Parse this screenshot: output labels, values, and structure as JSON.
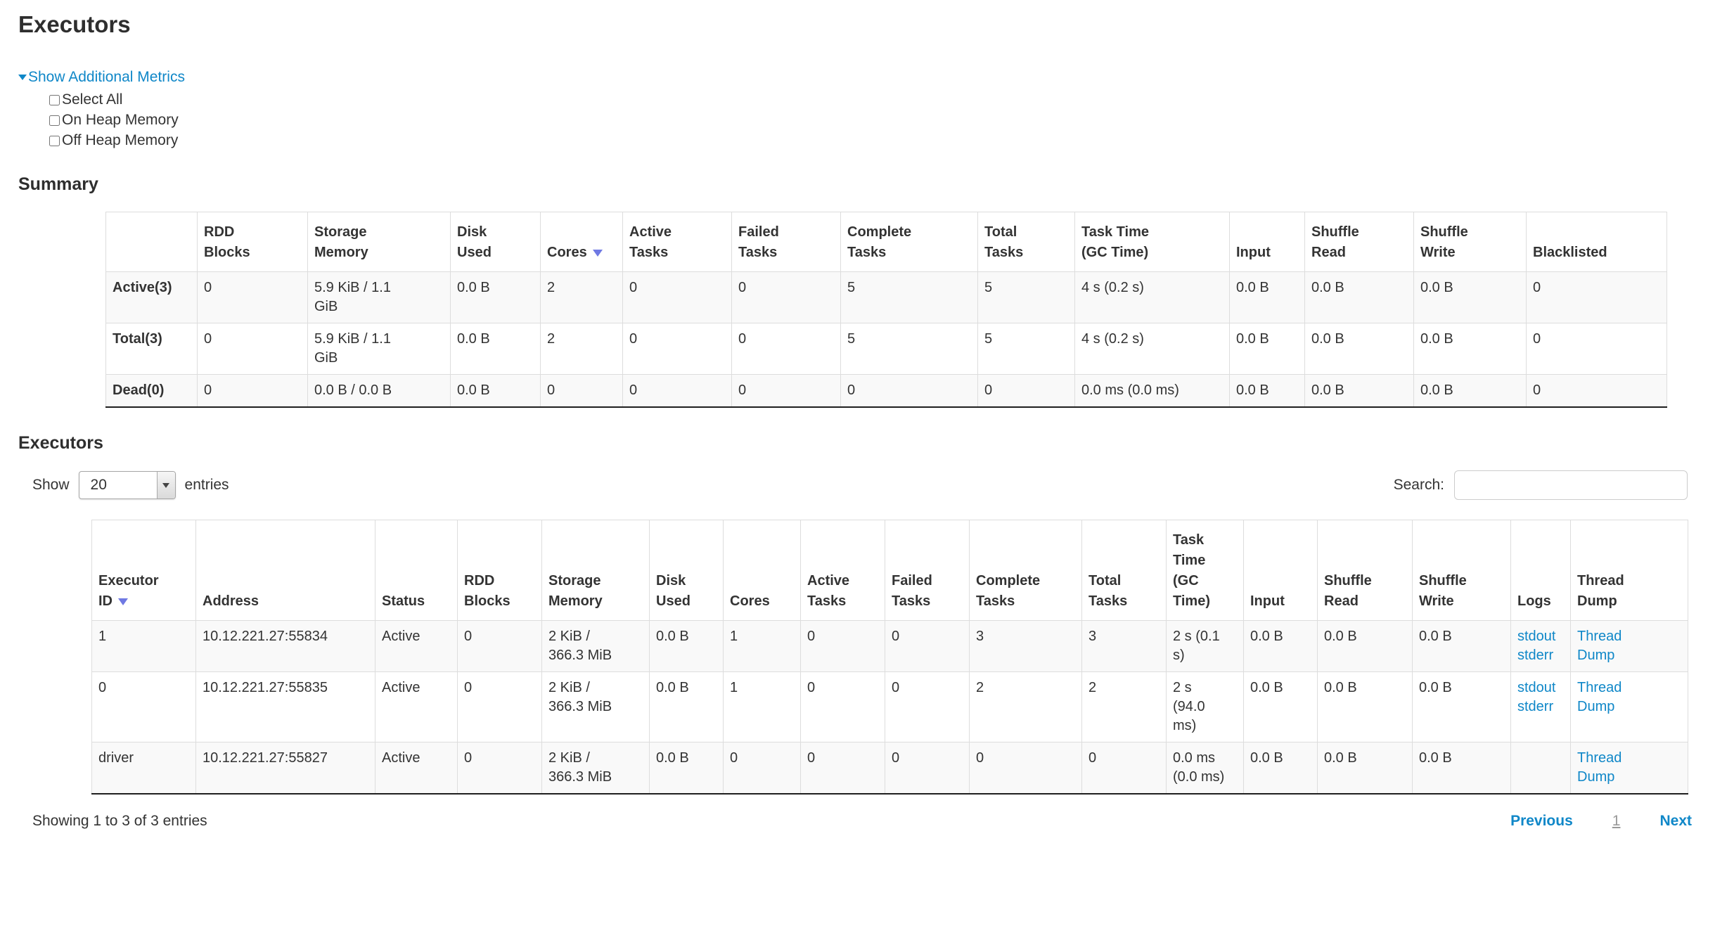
{
  "page": {
    "title": "Executors"
  },
  "colors": {
    "text": "#333333",
    "link_blue": "#0f87c8",
    "sort_arrow": "#6f79e3",
    "row_stripe": "#f9f9f9",
    "border": "#dddddd",
    "page_number_gray": "#999999"
  },
  "metrics_toggle": {
    "label": "Show Additional Metrics",
    "checkboxes": [
      "Select All",
      "On Heap Memory",
      "Off Heap Memory"
    ]
  },
  "summary": {
    "heading": "Summary",
    "columns": [
      "",
      "RDD\nBlocks",
      "Storage\nMemory",
      "Disk\nUsed",
      "Cores",
      "Active\nTasks",
      "Failed\nTasks",
      "Complete\nTasks",
      "Total\nTasks",
      "Task Time\n(GC Time)",
      "Input",
      "Shuffle\nRead",
      "Shuffle\nWrite",
      "Blacklisted"
    ],
    "sort_column_index": 4,
    "rows": [
      {
        "label": "Active(3)",
        "values": [
          "0",
          "5.9 KiB / 1.1\nGiB",
          "0.0 B",
          "2",
          "0",
          "0",
          "5",
          "5",
          "4 s (0.2 s)",
          "0.0 B",
          "0.0 B",
          "0.0 B",
          "0"
        ]
      },
      {
        "label": "Total(3)",
        "values": [
          "0",
          "5.9 KiB / 1.1\nGiB",
          "0.0 B",
          "2",
          "0",
          "0",
          "5",
          "5",
          "4 s (0.2 s)",
          "0.0 B",
          "0.0 B",
          "0.0 B",
          "0"
        ]
      },
      {
        "label": "Dead(0)",
        "values": [
          "0",
          "0.0 B / 0.0 B",
          "0.0 B",
          "0",
          "0",
          "0",
          "0",
          "0",
          "0.0 ms (0.0 ms)",
          "0.0 B",
          "0.0 B",
          "0.0 B",
          "0"
        ]
      }
    ]
  },
  "executors": {
    "heading": "Executors",
    "controls": {
      "show_label": "Show",
      "page_size": "20",
      "entries_label": "entries",
      "search_label": "Search:"
    },
    "columns": [
      "Executor\nID",
      "Address",
      "Status",
      "RDD\nBlocks",
      "Storage\nMemory",
      "Disk\nUsed",
      "Cores",
      "Active\nTasks",
      "Failed\nTasks",
      "Complete\nTasks",
      "Total\nTasks",
      "Task\nTime\n(GC\nTime)",
      "Input",
      "Shuffle\nRead",
      "Shuffle\nWrite",
      "Logs",
      "Thread\nDump"
    ],
    "sort_column_index": 0,
    "rows": [
      {
        "cells": [
          "1",
          "10.12.221.27:55834",
          "Active",
          "0",
          "2 KiB /\n366.3 MiB",
          "0.0 B",
          "1",
          "0",
          "0",
          "3",
          "3",
          "2 s (0.1\ns)",
          "0.0 B",
          "0.0 B",
          "0.0 B"
        ],
        "logs": [
          "stdout",
          "stderr"
        ],
        "thread_dump": "Thread\nDump"
      },
      {
        "cells": [
          "0",
          "10.12.221.27:55835",
          "Active",
          "0",
          "2 KiB /\n366.3 MiB",
          "0.0 B",
          "1",
          "0",
          "0",
          "2",
          "2",
          "2 s\n(94.0\nms)",
          "0.0 B",
          "0.0 B",
          "0.0 B"
        ],
        "logs": [
          "stdout",
          "stderr"
        ],
        "thread_dump": "Thread\nDump"
      },
      {
        "cells": [
          "driver",
          "10.12.221.27:55827",
          "Active",
          "0",
          "2 KiB /\n366.3 MiB",
          "0.0 B",
          "0",
          "0",
          "0",
          "0",
          "0",
          "0.0 ms\n(0.0 ms)",
          "0.0 B",
          "0.0 B",
          "0.0 B"
        ],
        "logs": [],
        "thread_dump": "Thread\nDump"
      }
    ],
    "footer": {
      "showing": "Showing 1 to 3 of 3 entries",
      "previous": "Previous",
      "page": "1",
      "next": "Next"
    }
  }
}
